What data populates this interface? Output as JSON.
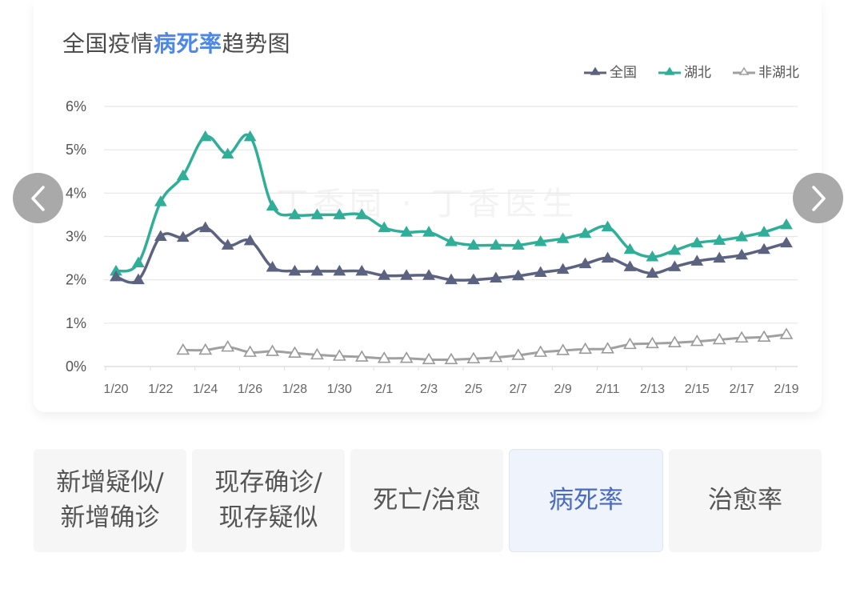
{
  "title": {
    "prefix": "全国疫情",
    "highlight": "病死率",
    "suffix": "趋势图"
  },
  "legend": [
    {
      "label": "全国",
      "color": "#5b6380",
      "marker": "filled-triangle"
    },
    {
      "label": "湖北",
      "color": "#2fae98",
      "marker": "filled-triangle"
    },
    {
      "label": "非湖北",
      "color": "#a0a0a0",
      "marker": "hollow-triangle"
    }
  ],
  "watermark": "丁香园 · 丁香医生",
  "nav": {
    "prev_icon": "chevron-left-icon",
    "next_icon": "chevron-right-icon"
  },
  "tabs": [
    {
      "label": "新增疑似/\n新增确诊",
      "line1": "新增疑似/",
      "line2": "新增确诊",
      "active": false
    },
    {
      "label": "现存确诊/\n现存疑似",
      "line1": "现存确诊/",
      "line2": "现存疑似",
      "active": false
    },
    {
      "label": "死亡/治愈",
      "line1": "死亡/治愈",
      "line2": "",
      "active": false
    },
    {
      "label": "病死率",
      "line1": "病死率",
      "line2": "",
      "active": true
    },
    {
      "label": "治愈率",
      "line1": "治愈率",
      "line2": "",
      "active": false
    }
  ],
  "chart_data": {
    "type": "line",
    "title": "全国疫情病死率趋势图",
    "xlabel": "",
    "ylabel": "",
    "ylim": [
      0,
      6
    ],
    "y_ticks": [
      "0%",
      "1%",
      "2%",
      "3%",
      "4%",
      "5%",
      "6%"
    ],
    "x_tick_labels": [
      "1/20",
      "1/22",
      "1/24",
      "1/26",
      "1/28",
      "1/30",
      "2/1",
      "2/3",
      "2/5",
      "2/7",
      "2/9",
      "2/11",
      "2/13",
      "2/15",
      "2/17",
      "2/19"
    ],
    "grid": true,
    "legend_position": "top-right",
    "x": [
      "1/20",
      "1/21",
      "1/22",
      "1/23",
      "1/24",
      "1/25",
      "1/26",
      "1/27",
      "1/28",
      "1/29",
      "1/30",
      "1/31",
      "2/1",
      "2/2",
      "2/3",
      "2/4",
      "2/5",
      "2/6",
      "2/7",
      "2/8",
      "2/9",
      "2/10",
      "2/11",
      "2/12",
      "2/13",
      "2/14",
      "2/15",
      "2/16",
      "2/17",
      "2/18",
      "2/19"
    ],
    "series": [
      {
        "name": "全国",
        "color": "#5b6380",
        "values": [
          2.07,
          2.0,
          3.0,
          2.98,
          3.2,
          2.8,
          2.9,
          2.29,
          2.2,
          2.2,
          2.2,
          2.2,
          2.1,
          2.1,
          2.1,
          2.0,
          2.0,
          2.04,
          2.09,
          2.17,
          2.24,
          2.37,
          2.5,
          2.3,
          2.15,
          2.3,
          2.43,
          2.5,
          2.57,
          2.7,
          2.85
        ]
      },
      {
        "name": "湖北",
        "color": "#2fae98",
        "values": [
          2.2,
          2.39,
          3.8,
          4.4,
          5.3,
          4.9,
          5.3,
          3.7,
          3.5,
          3.5,
          3.5,
          3.5,
          3.2,
          3.1,
          3.1,
          2.88,
          2.8,
          2.8,
          2.8,
          2.88,
          2.95,
          3.07,
          3.22,
          2.7,
          2.53,
          2.68,
          2.85,
          2.91,
          2.99,
          3.1,
          3.27
        ]
      },
      {
        "name": "非湖北",
        "color": "#a0a0a0",
        "values": [
          null,
          null,
          null,
          0.38,
          0.38,
          0.45,
          0.33,
          0.35,
          0.31,
          0.27,
          0.24,
          0.22,
          0.19,
          0.19,
          0.16,
          0.16,
          0.18,
          0.21,
          0.26,
          0.33,
          0.37,
          0.4,
          0.41,
          0.51,
          0.53,
          0.55,
          0.58,
          0.62,
          0.66,
          0.68,
          0.74
        ]
      }
    ]
  }
}
